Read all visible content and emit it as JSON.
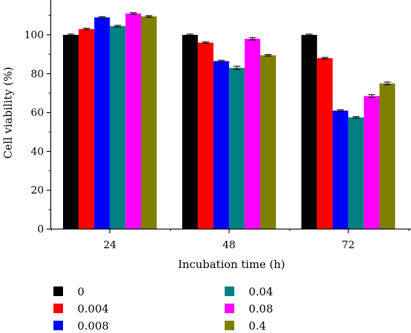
{
  "chart_data": {
    "type": "bar",
    "title": "",
    "xlabel": "Incubation time (h)",
    "ylabel": "Cell viability (%)",
    "categories": [
      "24",
      "48",
      "72"
    ],
    "ylim": [
      0,
      115
    ],
    "yticks": [
      "0",
      "20",
      "40",
      "60",
      "80",
      "100"
    ],
    "grid": false,
    "legend_position": "bottom",
    "series": [
      {
        "name": "0",
        "color": "#000000",
        "values": [
          100,
          100,
          100
        ],
        "errors": [
          0.4,
          0.4,
          0.4
        ]
      },
      {
        "name": "0.004",
        "color": "#ff0000",
        "values": [
          103,
          96,
          88
        ],
        "errors": [
          0.4,
          0.4,
          0.4
        ]
      },
      {
        "name": "0.008",
        "color": "#0000ff",
        "values": [
          109,
          86.5,
          61
        ],
        "errors": [
          0.4,
          0.4,
          0.4
        ]
      },
      {
        "name": "0.04",
        "color": "#008080",
        "values": [
          104.5,
          83,
          57.5
        ],
        "errors": [
          0.4,
          0.8,
          0.4
        ]
      },
      {
        "name": "0.08",
        "color": "#ff00ff",
        "values": [
          111,
          98,
          68.5
        ],
        "errors": [
          0.4,
          0.6,
          0.7
        ]
      },
      {
        "name": "0.4",
        "color": "#808000",
        "values": [
          109.5,
          89.5,
          75
        ],
        "errors": [
          0.4,
          0.4,
          0.7
        ]
      }
    ]
  }
}
